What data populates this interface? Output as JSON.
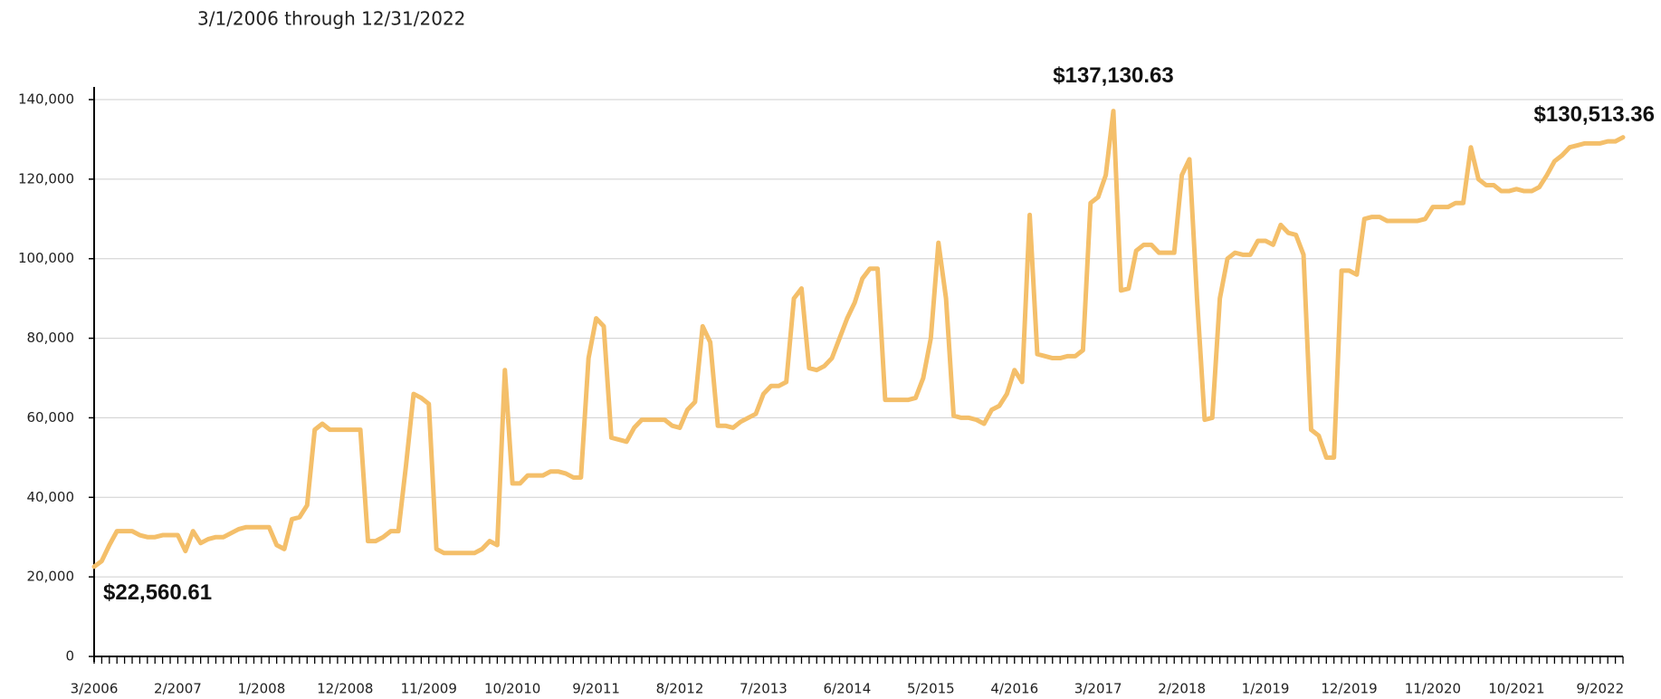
{
  "chart_data": {
    "type": "line",
    "subtitle": "3/1/2006 through 12/31/2022",
    "categories": [
      "3/2006",
      null,
      null,
      null,
      null,
      null,
      null,
      null,
      null,
      null,
      null,
      "2/2007",
      null,
      null,
      null,
      null,
      null,
      null,
      null,
      null,
      null,
      null,
      "1/2008",
      null,
      null,
      null,
      null,
      null,
      null,
      null,
      null,
      null,
      null,
      "12/2008",
      null,
      null,
      null,
      null,
      null,
      null,
      null,
      null,
      null,
      null,
      "11/2009",
      null,
      null,
      null,
      null,
      null,
      null,
      null,
      null,
      null,
      null,
      "10/2010",
      null,
      null,
      null,
      null,
      null,
      null,
      null,
      null,
      null,
      null,
      "9/2011",
      null,
      null,
      null,
      null,
      null,
      null,
      null,
      null,
      null,
      null,
      "8/2012",
      null,
      null,
      null,
      null,
      null,
      null,
      null,
      null,
      null,
      null,
      "7/2013",
      null,
      null,
      null,
      null,
      null,
      null,
      null,
      null,
      null,
      null,
      "6/2014",
      null,
      null,
      null,
      null,
      null,
      null,
      null,
      null,
      null,
      null,
      "5/2015",
      null,
      null,
      null,
      null,
      null,
      null,
      null,
      null,
      null,
      null,
      "4/2016",
      null,
      null,
      null,
      null,
      null,
      null,
      null,
      null,
      null,
      null,
      "3/2017",
      null,
      null,
      null,
      null,
      null,
      null,
      null,
      null,
      null,
      null,
      "2/2018",
      null,
      null,
      null,
      null,
      null,
      null,
      null,
      null,
      null,
      null,
      "1/2019",
      null,
      null,
      null,
      null,
      null,
      null,
      null,
      null,
      null,
      null,
      "12/2019",
      null,
      null,
      null,
      null,
      null,
      null,
      null,
      null,
      null,
      null,
      "11/2020",
      null,
      null,
      null,
      null,
      null,
      null,
      null,
      null,
      null,
      null,
      "10/2021",
      null,
      null,
      null,
      null,
      null,
      null,
      null,
      null,
      null,
      null,
      "9/2022",
      null,
      null,
      null
    ],
    "series": [
      {
        "color": "#f4bf6a",
        "values": [
          22560.61,
          24000,
          28000,
          31500,
          31500,
          31500,
          30500,
          30000,
          30000,
          30500,
          30500,
          30500,
          26500,
          31500,
          28500,
          29500,
          30000,
          30000,
          31000,
          32000,
          32500,
          32500,
          32500,
          32500,
          28000,
          27000,
          34500,
          35000,
          38000,
          57000,
          58500,
          57000,
          57000,
          57000,
          57000,
          57000,
          29000,
          29000,
          30000,
          31500,
          31500,
          48000,
          66000,
          65000,
          63500,
          27000,
          26000,
          26000,
          26000,
          26000,
          26000,
          27000,
          29000,
          28000,
          72000,
          43500,
          43500,
          45500,
          45500,
          45500,
          46500,
          46500,
          46000,
          45000,
          45000,
          75000,
          85000,
          83000,
          55000,
          54500,
          54000,
          57500,
          59500,
          59500,
          59500,
          59500,
          58000,
          57500,
          62000,
          64000,
          83000,
          79000,
          58000,
          58000,
          57500,
          59000,
          60000,
          61000,
          66000,
          68000,
          68000,
          69000,
          90000,
          92500,
          72500,
          72000,
          73000,
          75000,
          80000,
          85000,
          89000,
          95000,
          97500,
          97500,
          64500,
          64500,
          64500,
          64500,
          65000,
          70000,
          80000,
          104000,
          90000,
          60500,
          60000,
          60000,
          59500,
          58500,
          62000,
          63000,
          66000,
          72000,
          69000,
          111000,
          76000,
          75500,
          75000,
          75000,
          75500,
          75500,
          77000,
          114000,
          115500,
          121000,
          137130.63,
          92000,
          92500,
          102000,
          103500,
          103500,
          101500,
          101500,
          101500,
          121000,
          125000,
          90000,
          59500,
          60000,
          90000,
          100000,
          101500,
          101000,
          101000,
          104500,
          104500,
          103500,
          108500,
          106500,
          106000,
          101000,
          57000,
          55500,
          50000,
          50000,
          97000,
          97000,
          96000,
          110000,
          110500,
          110500,
          109500,
          109500,
          109500,
          109500,
          109500,
          110000,
          113000,
          113000,
          113000,
          114000,
          114000,
          128000,
          120000,
          118500,
          118500,
          117000,
          117000,
          117500,
          117000,
          117000,
          118000,
          121000,
          124500,
          126000,
          128000,
          128500,
          129000,
          129000,
          129000,
          129500,
          129500,
          130513.36
        ],
        "value_labels": [
          "$22,560.61",
          null,
          null,
          null,
          null,
          null,
          null,
          null,
          null,
          null,
          null,
          null,
          null,
          null,
          null,
          null,
          null,
          null,
          null,
          null,
          null,
          null,
          null,
          null,
          null,
          null,
          null,
          null,
          null,
          null,
          null,
          null,
          null,
          null,
          null,
          null,
          null,
          null,
          null,
          null,
          null,
          null,
          null,
          null,
          null,
          null,
          null,
          null,
          null,
          null,
          null,
          null,
          null,
          null,
          null,
          null,
          null,
          null,
          null,
          null,
          null,
          null,
          null,
          null,
          null,
          null,
          null,
          null,
          null,
          null,
          null,
          null,
          null,
          null,
          null,
          null,
          null,
          null,
          null,
          null,
          null,
          null,
          null,
          null,
          null,
          null,
          null,
          null,
          null,
          null,
          null,
          null,
          null,
          null,
          null,
          null,
          null,
          null,
          null,
          null,
          null,
          null,
          null,
          null,
          null,
          null,
          null,
          null,
          null,
          null,
          null,
          null,
          null,
          null,
          null,
          null,
          null,
          null,
          null,
          null,
          null,
          null,
          null,
          null,
          null,
          null,
          null,
          null,
          null,
          null,
          null,
          null,
          null,
          null,
          "$137,130.63",
          null,
          null,
          null,
          null,
          null,
          null,
          null,
          null,
          null,
          null,
          null,
          null,
          null,
          null,
          null,
          null,
          null,
          null,
          null,
          null,
          null,
          null,
          null,
          null,
          null,
          null,
          null,
          null,
          null,
          null,
          null,
          null,
          null,
          null,
          null,
          null,
          null,
          null,
          null,
          null,
          null,
          null,
          null,
          null,
          null,
          null,
          null,
          null,
          null,
          null,
          null,
          null,
          null,
          null,
          null,
          null,
          null,
          null,
          null,
          null,
          null,
          null,
          null,
          null,
          null,
          null,
          "$130,513.36"
        ]
      }
    ],
    "ylim": [
      0,
      140000
    ],
    "yticks": [
      0,
      {
        "value": 20000,
        "label": "20,000"
      },
      {
        "value": 40000,
        "label": "40,000"
      },
      {
        "value": 60000,
        "label": "60,000"
      },
      {
        "value": 80000,
        "label": "80,000"
      },
      {
        "value": 100000,
        "label": "100,000"
      },
      {
        "value": 120000,
        "label": "120,000"
      },
      {
        "value": 140000,
        "label": "140,000"
      }
    ],
    "grid": true
  }
}
